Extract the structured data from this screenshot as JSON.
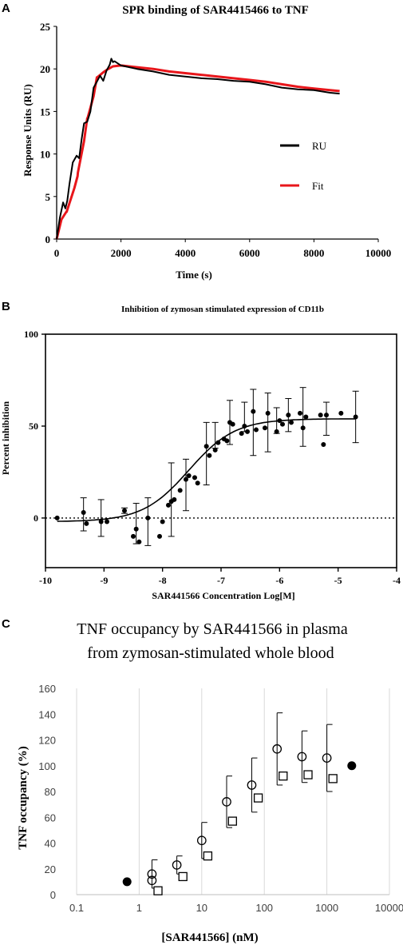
{
  "panels": {
    "a": {
      "letter": "A"
    },
    "b": {
      "letter": "B"
    },
    "c": {
      "letter": "C"
    }
  },
  "colors": {
    "ru": "#000000",
    "fit": "#e8161b",
    "axis": "#000000",
    "gridC": "#d9d9d9"
  },
  "chart_data": [
    {
      "panel": "A",
      "type": "line",
      "title": "SPR binding of SAR4415466 to TNF",
      "xlabel": "Time (s)",
      "ylabel": "Response Units (RU)",
      "xlim": [
        0,
        10000
      ],
      "ylim": [
        0,
        25
      ],
      "xticks": [
        "0",
        "2000",
        "4000",
        "6000",
        "8000",
        "10000"
      ],
      "yticks": [
        "0",
        "5",
        "10",
        "15",
        "20",
        "25"
      ],
      "grid": false,
      "legend": "right, inside plot",
      "series": [
        {
          "name": "RU",
          "color": "#000000",
          "x": [
            0,
            100,
            200,
            270,
            330,
            400,
            500,
            620,
            700,
            780,
            850,
            950,
            1050,
            1150,
            1250,
            1350,
            1450,
            1550,
            1650,
            1700,
            1750,
            1800,
            2000,
            2500,
            3000,
            3500,
            4000,
            4500,
            5000,
            5500,
            6000,
            6500,
            7000,
            7500,
            8000,
            8500,
            8800
          ],
          "y": [
            0,
            2.5,
            4.3,
            3.6,
            4.5,
            6.5,
            9.0,
            9.8,
            9.5,
            11.8,
            13.6,
            13.8,
            15.0,
            17.8,
            18.5,
            19.2,
            18.6,
            19.8,
            20.5,
            21.2,
            20.8,
            20.9,
            20.4,
            20.0,
            19.7,
            19.3,
            19.1,
            18.9,
            18.8,
            18.6,
            18.5,
            18.2,
            17.8,
            17.6,
            17.5,
            17.2,
            17.1
          ]
        },
        {
          "name": "Fit",
          "color": "#e8161b",
          "x": [
            0,
            150,
            300,
            310,
            550,
            650,
            660,
            850,
            950,
            960,
            1150,
            1250,
            1260,
            1450,
            1600,
            1610,
            1750,
            2000,
            2500,
            3000,
            3500,
            4000,
            4500,
            5000,
            5500,
            6000,
            6500,
            7000,
            7500,
            8000,
            8500,
            8800
          ],
          "y": [
            0,
            2.3,
            3.2,
            3.2,
            6.0,
            7.4,
            7.8,
            11.5,
            14.2,
            14.2,
            16.8,
            19.0,
            19.0,
            19.6,
            20.0,
            20.0,
            20.3,
            20.4,
            20.2,
            20.0,
            19.7,
            19.5,
            19.3,
            19.1,
            18.9,
            18.7,
            18.5,
            18.2,
            17.9,
            17.7,
            17.5,
            17.4
          ]
        }
      ]
    },
    {
      "panel": "B",
      "type": "scatter",
      "title": "Inhibition of zymosan stimulated expression of CD11b",
      "xlabel": "SAR441566 Concentration Log[M]",
      "ylabel": "Percent inhibition",
      "xlim": [
        -10,
        -4
      ],
      "ylim": [
        -27,
        100
      ],
      "xticks": [
        "-10",
        "-9",
        "-8",
        "-7",
        "-6",
        "-5",
        "-4"
      ],
      "yticks": [
        "0",
        "50",
        "100"
      ],
      "grid": false,
      "reference_line_y": 0,
      "points": [
        {
          "x": -9.8,
          "y": 0
        },
        {
          "x": -9.35,
          "y": 3
        },
        {
          "x": -9.3,
          "y": -3
        },
        {
          "x": -9.05,
          "y": -2
        },
        {
          "x": -8.95,
          "y": -2
        },
        {
          "x": -8.65,
          "y": 4
        },
        {
          "x": -8.5,
          "y": -10
        },
        {
          "x": -8.45,
          "y": -6
        },
        {
          "x": -8.4,
          "y": -13
        },
        {
          "x": -8.25,
          "y": 0
        },
        {
          "x": -8.05,
          "y": -10
        },
        {
          "x": -8.0,
          "y": -2
        },
        {
          "x": -7.9,
          "y": 7
        },
        {
          "x": -7.85,
          "y": 9
        },
        {
          "x": -7.8,
          "y": 10
        },
        {
          "x": -7.7,
          "y": 15
        },
        {
          "x": -7.6,
          "y": 21
        },
        {
          "x": -7.55,
          "y": 23
        },
        {
          "x": -7.45,
          "y": 22
        },
        {
          "x": -7.4,
          "y": 19
        },
        {
          "x": -7.25,
          "y": 39
        },
        {
          "x": -7.2,
          "y": 34
        },
        {
          "x": -7.1,
          "y": 37
        },
        {
          "x": -7.05,
          "y": 41
        },
        {
          "x": -6.95,
          "y": 43
        },
        {
          "x": -6.9,
          "y": 42
        },
        {
          "x": -6.85,
          "y": 52
        },
        {
          "x": -6.8,
          "y": 51
        },
        {
          "x": -6.65,
          "y": 46
        },
        {
          "x": -6.6,
          "y": 50
        },
        {
          "x": -6.55,
          "y": 47
        },
        {
          "x": -6.45,
          "y": 58
        },
        {
          "x": -6.4,
          "y": 48
        },
        {
          "x": -6.25,
          "y": 49
        },
        {
          "x": -6.2,
          "y": 57
        },
        {
          "x": -6.05,
          "y": 47
        },
        {
          "x": -6.0,
          "y": 53
        },
        {
          "x": -5.95,
          "y": 51
        },
        {
          "x": -5.85,
          "y": 56
        },
        {
          "x": -5.8,
          "y": 52
        },
        {
          "x": -5.65,
          "y": 57
        },
        {
          "x": -5.6,
          "y": 49
        },
        {
          "x": -5.55,
          "y": 55
        },
        {
          "x": -5.3,
          "y": 56
        },
        {
          "x": -5.25,
          "y": 40
        },
        {
          "x": -5.2,
          "y": 56
        },
        {
          "x": -4.95,
          "y": 57
        },
        {
          "x": -4.7,
          "y": 55
        }
      ],
      "errorbars": [
        {
          "x": -9.35,
          "y": 2,
          "err": 9
        },
        {
          "x": -9.05,
          "y": 0,
          "err": 10
        },
        {
          "x": -8.65,
          "y": 4,
          "err": 1.5
        },
        {
          "x": -8.45,
          "y": -3,
          "err": 11
        },
        {
          "x": -8.25,
          "y": -2,
          "err": 13
        },
        {
          "x": -7.85,
          "y": 10,
          "err": 20
        },
        {
          "x": -7.6,
          "y": 18,
          "err": 14
        },
        {
          "x": -7.25,
          "y": 35,
          "err": 17
        },
        {
          "x": -7.1,
          "y": 45,
          "err": 7
        },
        {
          "x": -6.85,
          "y": 52,
          "err": 12
        },
        {
          "x": -6.6,
          "y": 55,
          "err": 8
        },
        {
          "x": -6.45,
          "y": 52,
          "err": 18
        },
        {
          "x": -6.2,
          "y": 52,
          "err": 16
        },
        {
          "x": -6.05,
          "y": 53,
          "err": 7
        },
        {
          "x": -5.85,
          "y": 56,
          "err": 9
        },
        {
          "x": -5.6,
          "y": 55,
          "err": 16
        },
        {
          "x": -5.2,
          "y": 54,
          "err": 9
        },
        {
          "x": -4.7,
          "y": 55,
          "err": 14
        }
      ],
      "fit_curve": {
        "bottom": -2,
        "top": 54,
        "logIC50": -7.55,
        "hill": 1.1
      }
    },
    {
      "panel": "C",
      "type": "scatter",
      "title_line1": "TNF occupancy by SAR441566 in plasma",
      "title_line2": "from zymosan-stimulated whole blood",
      "xlabel": "[SAR441566] (nM)",
      "ylabel": "TNF occupancy (%)",
      "xscale": "log",
      "xlim": [
        0.1,
        10000
      ],
      "ylim": [
        0,
        160
      ],
      "xticks": [
        "0.1",
        "1",
        "10",
        "100",
        "1000",
        "10000"
      ],
      "yticks": [
        "0",
        "20",
        "40",
        "60",
        "80",
        "100",
        "120",
        "140",
        "160"
      ],
      "grid": "vertical gridlines at decades",
      "series": [
        {
          "marker": "open-circle",
          "points": [
            {
              "x": 1.6,
              "y": 16,
              "err": 11
            },
            {
              "x": 1.6,
              "y": 11,
              "err": 0
            },
            {
              "x": 4,
              "y": 23,
              "err": 7
            },
            {
              "x": 10,
              "y": 42,
              "err": 14
            },
            {
              "x": 25,
              "y": 72,
              "err": 20
            },
            {
              "x": 63,
              "y": 85,
              "err": 21
            },
            {
              "x": 160,
              "y": 113,
              "err": 28
            },
            {
              "x": 400,
              "y": 107,
              "err": 20
            },
            {
              "x": 1000,
              "y": 106,
              "err": 26
            }
          ]
        },
        {
          "marker": "open-square",
          "points": [
            {
              "x": 2,
              "y": 3
            },
            {
              "x": 5,
              "y": 14
            },
            {
              "x": 12.5,
              "y": 30
            },
            {
              "x": 31,
              "y": 57
            },
            {
              "x": 80,
              "y": 75
            },
            {
              "x": 200,
              "y": 92
            },
            {
              "x": 500,
              "y": 93
            },
            {
              "x": 1250,
              "y": 90
            }
          ]
        },
        {
          "marker": "filled-circle",
          "points": [
            {
              "x": 0.64,
              "y": 10
            },
            {
              "x": 2500,
              "y": 100
            }
          ]
        }
      ]
    }
  ]
}
